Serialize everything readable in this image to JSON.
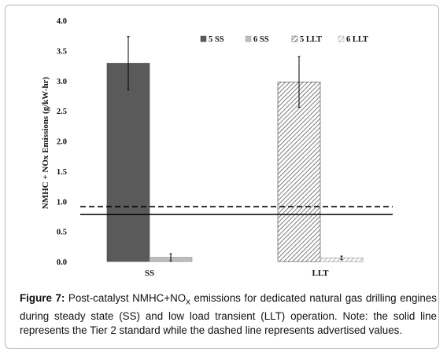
{
  "chart_data": {
    "type": "bar",
    "ylabel": "NMHC + NOx Emissions  (g/kW-hr)",
    "xlabel": "",
    "categories": [
      "SS",
      "LLT"
    ],
    "series": [
      {
        "name": "5 SS",
        "pattern": "solid-dark",
        "values": [
          3.29,
          null
        ],
        "errors": [
          0.44,
          null
        ]
      },
      {
        "name": "6 SS",
        "pattern": "solid-light",
        "values": [
          0.07,
          null
        ],
        "errors": [
          0.06,
          null
        ]
      },
      {
        "name": "5 LLT",
        "pattern": "hatch-dark",
        "values": [
          null,
          2.98
        ],
        "errors": [
          null,
          0.42
        ]
      },
      {
        "name": "6 LLT",
        "pattern": "hatch-light",
        "values": [
          null,
          0.06
        ],
        "errors": [
          null,
          0.03
        ]
      }
    ],
    "reference_lines": [
      {
        "style": "solid",
        "value": 0.78
      },
      {
        "style": "dashed",
        "value": 0.91
      }
    ],
    "ylim": [
      0,
      4.0
    ],
    "yticks": [
      "0.0",
      "0.5",
      "1.0",
      "1.5",
      "2.0",
      "2.5",
      "3.0",
      "3.5",
      "4.0"
    ],
    "legend_position": "top-right",
    "grid": false,
    "colors": {
      "dark": "#555555",
      "light": "#bdbdbd"
    }
  },
  "caption": {
    "label": "Figure 7:",
    "text_before_sub": " Post-catalyst NMHC+NO",
    "sub": "x",
    "text_after_sub": " emissions for dedicated natural gas drilling engines during steady state (SS) and low load transient (LLT) operation. Note: the solid line represents the Tier 2 standard while the dashed line represents advertised values."
  }
}
